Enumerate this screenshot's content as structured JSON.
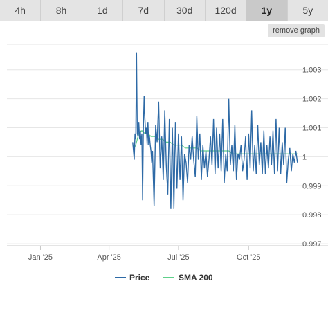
{
  "tabs": [
    {
      "label": "4h",
      "active": false
    },
    {
      "label": "8h",
      "active": false
    },
    {
      "label": "1d",
      "active": false
    },
    {
      "label": "7d",
      "active": false
    },
    {
      "label": "30d",
      "active": false
    },
    {
      "label": "120d",
      "active": false
    },
    {
      "label": "1y",
      "active": true
    },
    {
      "label": "5y",
      "active": false
    }
  ],
  "remove_graph_label": "remove graph",
  "colors": {
    "price": "#2e6aa6",
    "sma": "#5fd08a",
    "grid": "#e6e6e6"
  },
  "chart_data": {
    "type": "line",
    "title": "",
    "xlabel": "",
    "ylabel": "",
    "x_ticks": [
      "Jan '25",
      "Apr '25",
      "Jul '25",
      "Oct '25"
    ],
    "x_tick_dates": [
      "2025-01-01",
      "2025-04-01",
      "2025-07-01",
      "2025-10-01"
    ],
    "x_range": [
      "2024-11-18",
      "2025-12-06"
    ],
    "y_ticks": [
      "0.997",
      "0.998",
      "0.999",
      "1",
      "1.001",
      "1.002",
      "1.003"
    ],
    "y_tick_values": [
      0.997,
      0.998,
      0.999,
      1.0,
      1.001,
      1.002,
      1.003
    ],
    "ylim": [
      0.99693,
      1.0039
    ],
    "grid": true,
    "legend": "bottom",
    "series": [
      {
        "name": "Price",
        "x": [
          "2025-05-02",
          "2025-05-03",
          "2025-05-04",
          "2025-05-05",
          "2025-05-06",
          "2025-05-07",
          "2025-05-08",
          "2025-05-09",
          "2025-05-10",
          "2025-05-11",
          "2025-05-12",
          "2025-05-13",
          "2025-05-14",
          "2025-05-15",
          "2025-05-16",
          "2025-05-17",
          "2025-05-18",
          "2025-05-19",
          "2025-05-20",
          "2025-05-21",
          "2025-05-22",
          "2025-05-23",
          "2025-05-24",
          "2025-05-25",
          "2025-05-26",
          "2025-05-27",
          "2025-05-28",
          "2025-05-30",
          "2025-06-01",
          "2025-06-03",
          "2025-06-05",
          "2025-06-07",
          "2025-06-09",
          "2025-06-11",
          "2025-06-13",
          "2025-06-15",
          "2025-06-17",
          "2025-06-19",
          "2025-06-21",
          "2025-06-23",
          "2025-06-25",
          "2025-06-27",
          "2025-06-29",
          "2025-07-01",
          "2025-07-03",
          "2025-07-05",
          "2025-07-07",
          "2025-07-09",
          "2025-07-11",
          "2025-07-13",
          "2025-07-15",
          "2025-07-17",
          "2025-07-19",
          "2025-07-21",
          "2025-07-23",
          "2025-07-25",
          "2025-07-27",
          "2025-07-29",
          "2025-07-31",
          "2025-08-02",
          "2025-08-04",
          "2025-08-06",
          "2025-08-08",
          "2025-08-10",
          "2025-08-12",
          "2025-08-14",
          "2025-08-16",
          "2025-08-18",
          "2025-08-20",
          "2025-08-22",
          "2025-08-24",
          "2025-08-26",
          "2025-08-28",
          "2025-08-30",
          "2025-09-01",
          "2025-09-03",
          "2025-09-05",
          "2025-09-07",
          "2025-09-09",
          "2025-09-11",
          "2025-09-13",
          "2025-09-15",
          "2025-09-17",
          "2025-09-19",
          "2025-09-21",
          "2025-09-23",
          "2025-09-25",
          "2025-09-27",
          "2025-09-29",
          "2025-10-01",
          "2025-10-03",
          "2025-10-05",
          "2025-10-07",
          "2025-10-09",
          "2025-10-11",
          "2025-10-13",
          "2025-10-15",
          "2025-10-17",
          "2025-10-19",
          "2025-10-21",
          "2025-10-23",
          "2025-10-25",
          "2025-10-27",
          "2025-10-29",
          "2025-10-31",
          "2025-11-02",
          "2025-11-04",
          "2025-11-06",
          "2025-11-08",
          "2025-11-10",
          "2025-11-12",
          "2025-11-14",
          "2025-11-16",
          "2025-11-18",
          "2025-11-20",
          "2025-11-22",
          "2025-11-24",
          "2025-11-26",
          "2025-11-28",
          "2025-11-30",
          "2025-12-02",
          "2025-12-04"
        ],
        "values": [
          1.0005,
          1.0002,
          0.9999,
          1.0008,
          1.0006,
          1.0036,
          1.0008,
          1.0007,
          1.0012,
          1.0006,
          1.0009,
          1.0004,
          1.0008,
          0.9985,
          1.001,
          1.0021,
          1.0013,
          1.0008,
          1.001,
          1.0004,
          1.0012,
          1.0004,
          1.0007,
          1.0004,
          1.0002,
          0.9998,
          1.0002,
          0.9983,
          1.0011,
          1.0005,
          1.0019,
          0.9996,
          1.0007,
          0.9992,
          1.0016,
          0.9997,
          0.9987,
          1.0013,
          0.9982,
          1.001,
          0.9982,
          1.0012,
          0.9989,
          1.0008,
          0.9992,
          1.0007,
          0.9985,
          1.0001,
          0.9998,
          0.9991,
          1.0004,
          0.9999,
          1.0007,
          0.9999,
          0.9993,
          1.0014,
          0.9999,
          1.0008,
          0.9992,
          1.0004,
          0.9996,
          1.0002,
          0.9993,
          0.9999,
          1.0007,
          0.9997,
          1.0013,
          0.9994,
          1.001,
          0.9996,
          1.0008,
          0.9995,
          1.0013,
          0.9991,
          1.0001,
          0.9995,
          1.002,
          0.9997,
          1.0004,
          0.9995,
          1.0011,
          0.9992,
          1.0001,
          0.9999,
          1.0004,
          0.9995,
          0.9999,
          1.0007,
          0.9992,
          1.0008,
          0.9996,
          1.0016,
          0.9995,
          1.0004,
          0.9994,
          1.0011,
          0.9997,
          1.0005,
          0.9994,
          1.0009,
          0.9994,
          1.0004,
          0.9996,
          1.0007,
          0.9997,
          1.0009,
          0.9994,
          1.0013,
          0.9995,
          1.001,
          0.9994,
          1.0005,
          0.9997,
          1.001,
          0.9991,
          0.9999,
          1.0003,
          0.9995,
          1.0001,
          0.9998,
          1.0002,
          0.9998
        ]
      },
      {
        "name": "SMA 200",
        "x": [
          "2025-05-02",
          "2025-05-04",
          "2025-05-06",
          "2025-05-08",
          "2025-05-10",
          "2025-05-14",
          "2025-05-18",
          "2025-05-22",
          "2025-05-26",
          "2025-05-31",
          "2025-06-05",
          "2025-06-10",
          "2025-06-15",
          "2025-06-20",
          "2025-06-25",
          "2025-06-30",
          "2025-07-05",
          "2025-07-10",
          "2025-07-15",
          "2025-07-20",
          "2025-07-25",
          "2025-07-31",
          "2025-08-05",
          "2025-08-10",
          "2025-08-15",
          "2025-08-20",
          "2025-08-25",
          "2025-08-31",
          "2025-09-05",
          "2025-09-10",
          "2025-09-15",
          "2025-09-20",
          "2025-09-25",
          "2025-09-30",
          "2025-10-05",
          "2025-10-10",
          "2025-10-15",
          "2025-10-20",
          "2025-10-25",
          "2025-10-31",
          "2025-11-05",
          "2025-11-10",
          "2025-11-15",
          "2025-11-20",
          "2025-11-25",
          "2025-11-30",
          "2025-12-04"
        ],
        "values": [
          1.0004,
          1.0003,
          1.0004,
          1.0006,
          1.0008,
          1.0009,
          1.0008,
          1.0008,
          1.0007,
          1.0007,
          1.0006,
          1.0006,
          1.0005,
          1.0005,
          1.0004,
          1.0004,
          1.0004,
          1.0003,
          1.0003,
          1.0003,
          1.0003,
          1.0002,
          1.0002,
          1.0002,
          1.0002,
          1.0002,
          1.0002,
          1.0002,
          1.0002,
          1.0001,
          1.0001,
          1.0001,
          1.0001,
          1.0001,
          1.0001,
          1.0001,
          1.0001,
          1.0001,
          1.0001,
          1.0001,
          1.0001,
          1.0001,
          1.0001,
          1.0001,
          1.0001,
          1.0001,
          1.0001
        ]
      }
    ]
  }
}
